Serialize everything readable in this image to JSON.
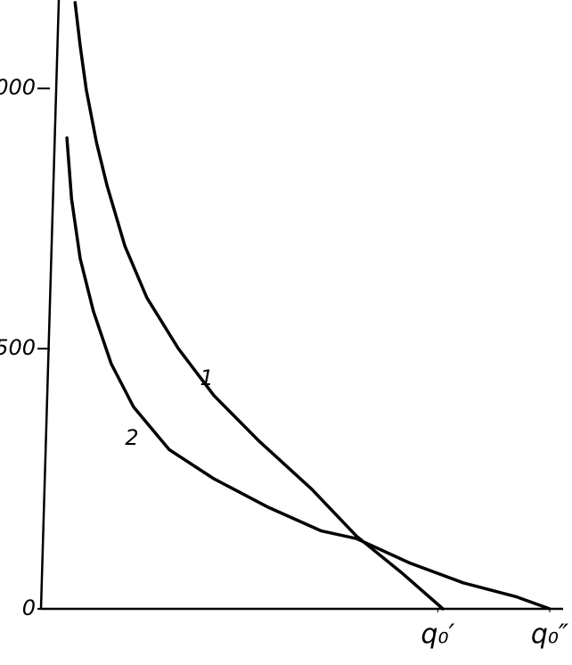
{
  "chart_data": {
    "type": "line",
    "series": [
      {
        "name": "1",
        "color": "#000000",
        "x": [
          0.067,
          0.077,
          0.089,
          0.109,
          0.13,
          0.165,
          0.208,
          0.27,
          0.34,
          0.427,
          0.532,
          0.62,
          0.708,
          0.79
        ],
        "values": [
          1165,
          1082,
          998,
          897,
          813,
          697,
          598,
          500,
          410,
          324,
          230,
          140,
          70,
          0
        ]
      },
      {
        "name": "2",
        "color": "#000000",
        "x": [
          0.051,
          0.06,
          0.077,
          0.103,
          0.138,
          0.182,
          0.252,
          0.34,
          0.445,
          0.55,
          0.62,
          0.725,
          0.83,
          0.935,
          1.0
        ],
        "values": [
          905,
          788,
          673,
          572,
          471,
          388,
          306,
          250,
          196,
          150,
          135,
          88,
          50,
          23,
          0
        ]
      }
    ],
    "xlim": [
      0,
      1
    ],
    "xticks": [
      {
        "value": 0.78,
        "label": "q₀′"
      },
      {
        "value": 1.0,
        "label": "q₀″"
      }
    ],
    "ylim": [
      0,
      1170
    ],
    "yticks": [
      0,
      500,
      1000
    ],
    "grid": false
  }
}
